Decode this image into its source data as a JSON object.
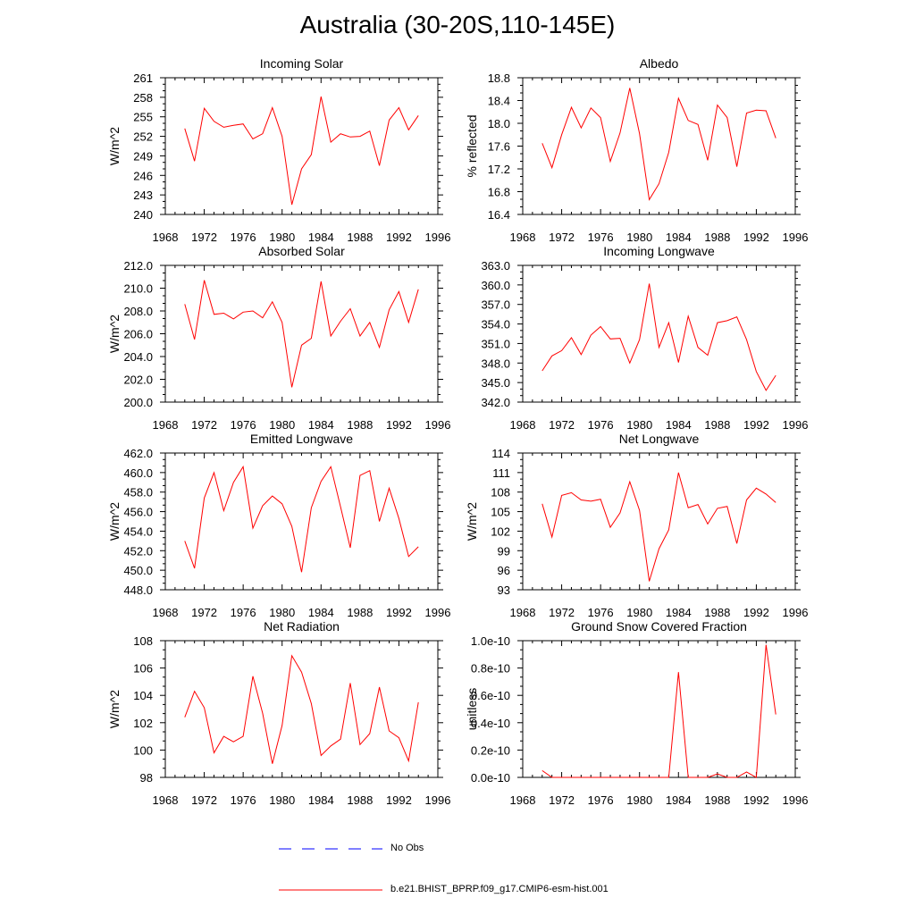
{
  "title": "Australia (30-20S,110-145E)",
  "colors": {
    "model": "#ff0000",
    "obs": "#0000ff",
    "axis": "#000000"
  },
  "legend": {
    "obs_label": "No Obs",
    "model_label": "b.e21.BHIST_BPRP.f09_g17.CMIP6-esm-hist.001"
  },
  "chart_data": [
    {
      "type": "line",
      "title": "Incoming Solar",
      "ylabel": "W/m^2",
      "xlim": [
        1968,
        1996
      ],
      "xticks": [
        "1968",
        "1972",
        "1976",
        "1980",
        "1984",
        "1988",
        "1992",
        "1996"
      ],
      "ylim": [
        240,
        261
      ],
      "yticks": [
        "240",
        "243",
        "246",
        "249",
        "252",
        "255",
        "258",
        "261"
      ],
      "x": [
        1970,
        1971,
        1972,
        1973,
        1974,
        1975,
        1976,
        1977,
        1978,
        1979,
        1980,
        1981,
        1982,
        1983,
        1984,
        1985,
        1986,
        1987,
        1988,
        1989,
        1990,
        1991,
        1992,
        1993,
        1994
      ],
      "series": [
        {
          "values": [
            253.2,
            248.2,
            256.3,
            254.3,
            253.4,
            253.7,
            253.9,
            251.6,
            252.4,
            256.4,
            252.0,
            241.5,
            247.0,
            249.2,
            258.1,
            251.1,
            252.4,
            251.9,
            252.0,
            252.8,
            247.5,
            254.5,
            256.4,
            253.0,
            255.2
          ]
        }
      ]
    },
    {
      "type": "line",
      "title": "Albedo",
      "ylabel": "% reflected",
      "xlim": [
        1968,
        1996
      ],
      "xticks": [
        "1968",
        "1972",
        "1976",
        "1980",
        "1984",
        "1988",
        "1992",
        "1996"
      ],
      "ylim": [
        16.4,
        18.8
      ],
      "yticks": [
        "16.4",
        "16.8",
        "17.2",
        "17.6",
        "18.0",
        "18.4",
        "18.8"
      ],
      "x": [
        1970,
        1971,
        1972,
        1973,
        1974,
        1975,
        1976,
        1977,
        1978,
        1979,
        1980,
        1981,
        1982,
        1983,
        1984,
        1985,
        1986,
        1987,
        1988,
        1989,
        1990,
        1991,
        1992,
        1993,
        1994
      ],
      "series": [
        {
          "values": [
            17.65,
            17.22,
            17.8,
            18.28,
            17.92,
            18.27,
            18.1,
            17.33,
            17.83,
            18.62,
            17.82,
            16.66,
            16.94,
            17.49,
            18.44,
            18.05,
            17.98,
            17.35,
            18.32,
            18.1,
            17.24,
            18.18,
            18.23,
            18.22,
            17.74
          ]
        }
      ]
    },
    {
      "type": "line",
      "title": "Absorbed Solar",
      "ylabel": "W/m^2",
      "xlim": [
        1968,
        1996
      ],
      "xticks": [
        "1968",
        "1972",
        "1976",
        "1980",
        "1984",
        "1988",
        "1992",
        "1996"
      ],
      "ylim": [
        200,
        212
      ],
      "yticks": [
        "200.0",
        "202.0",
        "204.0",
        "206.0",
        "208.0",
        "210.0",
        "212.0"
      ],
      "x": [
        1970,
        1971,
        1972,
        1973,
        1974,
        1975,
        1976,
        1977,
        1978,
        1979,
        1980,
        1981,
        1982,
        1983,
        1984,
        1985,
        1986,
        1987,
        1988,
        1989,
        1990,
        1991,
        1992,
        1993,
        1994
      ],
      "series": [
        {
          "values": [
            208.6,
            205.5,
            210.7,
            207.7,
            207.8,
            207.3,
            207.9,
            208.0,
            207.4,
            208.8,
            207.0,
            201.3,
            205.0,
            205.6,
            210.6,
            205.8,
            207.1,
            208.2,
            205.8,
            207.0,
            204.8,
            208.1,
            209.7,
            207.0,
            209.9
          ]
        }
      ]
    },
    {
      "type": "line",
      "title": "Incoming Longwave",
      "ylabel": "",
      "xlim": [
        1968,
        1996
      ],
      "xticks": [
        "1968",
        "1972",
        "1976",
        "1980",
        "1984",
        "1988",
        "1992",
        "1996"
      ],
      "ylim": [
        342,
        363
      ],
      "yticks": [
        "342.0",
        "345.0",
        "348.0",
        "351.0",
        "354.0",
        "357.0",
        "360.0",
        "363.0"
      ],
      "x": [
        1970,
        1971,
        1972,
        1973,
        1974,
        1975,
        1976,
        1977,
        1978,
        1979,
        1980,
        1981,
        1982,
        1983,
        1984,
        1985,
        1986,
        1987,
        1988,
        1989,
        1990,
        1991,
        1992,
        1993,
        1994
      ],
      "series": [
        {
          "values": [
            346.8,
            349.1,
            349.9,
            351.9,
            349.3,
            352.3,
            353.6,
            351.7,
            351.8,
            348.0,
            351.6,
            360.2,
            350.4,
            354.2,
            348.1,
            355.2,
            350.4,
            349.2,
            354.2,
            354.5,
            355.1,
            351.6,
            346.7,
            343.8,
            346.1
          ]
        }
      ]
    },
    {
      "type": "line",
      "title": "Emitted Longwave",
      "ylabel": "W/m^2",
      "xlim": [
        1968,
        1996
      ],
      "xticks": [
        "1968",
        "1972",
        "1976",
        "1980",
        "1984",
        "1988",
        "1992",
        "1996"
      ],
      "ylim": [
        448,
        462
      ],
      "yticks": [
        "448.0",
        "450.0",
        "452.0",
        "454.0",
        "456.0",
        "458.0",
        "460.0",
        "462.0"
      ],
      "x": [
        1970,
        1971,
        1972,
        1973,
        1974,
        1975,
        1976,
        1977,
        1978,
        1979,
        1980,
        1981,
        1982,
        1983,
        1984,
        1985,
        1986,
        1987,
        1988,
        1989,
        1990,
        1991,
        1992,
        1993,
        1994
      ],
      "series": [
        {
          "values": [
            453.0,
            450.2,
            457.4,
            460.0,
            456.1,
            459.0,
            460.6,
            454.3,
            456.6,
            457.6,
            456.8,
            454.5,
            449.8,
            456.4,
            459.1,
            460.6,
            456.5,
            452.3,
            459.7,
            460.2,
            455.0,
            458.4,
            455.3,
            451.4,
            452.4
          ]
        }
      ]
    },
    {
      "type": "line",
      "title": "Net Longwave",
      "ylabel": "W/m^2",
      "xlim": [
        1968,
        1996
      ],
      "xticks": [
        "1968",
        "1972",
        "1976",
        "1980",
        "1984",
        "1988",
        "1992",
        "1996"
      ],
      "ylim": [
        93,
        114
      ],
      "yticks": [
        "93",
        "96",
        "99",
        "102",
        "105",
        "108",
        "111",
        "114"
      ],
      "x": [
        1970,
        1971,
        1972,
        1973,
        1974,
        1975,
        1976,
        1977,
        1978,
        1979,
        1980,
        1981,
        1982,
        1983,
        1984,
        1985,
        1986,
        1987,
        1988,
        1989,
        1990,
        1991,
        1992,
        1993,
        1994
      ],
      "series": [
        {
          "values": [
            106.2,
            101.1,
            107.5,
            107.9,
            106.8,
            106.6,
            106.9,
            102.6,
            104.8,
            109.6,
            105.2,
            94.3,
            99.3,
            102.2,
            111.0,
            105.6,
            106.1,
            103.1,
            105.5,
            105.8,
            100.1,
            106.8,
            108.6,
            107.7,
            106.4
          ]
        }
      ]
    },
    {
      "type": "line",
      "title": "Net Radiation",
      "ylabel": "W/m^2",
      "xlim": [
        1968,
        1996
      ],
      "xticks": [
        "1968",
        "1972",
        "1976",
        "1980",
        "1984",
        "1988",
        "1992",
        "1996"
      ],
      "ylim": [
        98,
        108
      ],
      "yticks": [
        "98",
        "100",
        "102",
        "104",
        "106",
        "108"
      ],
      "x": [
        1970,
        1971,
        1972,
        1973,
        1974,
        1975,
        1976,
        1977,
        1978,
        1979,
        1980,
        1981,
        1982,
        1983,
        1984,
        1985,
        1986,
        1987,
        1988,
        1989,
        1990,
        1991,
        1992,
        1993,
        1994
      ],
      "series": [
        {
          "values": [
            102.4,
            104.3,
            103.1,
            99.8,
            101.0,
            100.6,
            101.0,
            105.4,
            102.7,
            99.0,
            101.8,
            106.9,
            105.7,
            103.4,
            99.6,
            100.3,
            100.8,
            104.9,
            100.4,
            101.2,
            104.6,
            101.4,
            100.9,
            99.2,
            103.5
          ]
        }
      ]
    },
    {
      "type": "line",
      "title": "Ground Snow Covered Fraction",
      "ylabel": "unitless",
      "xlim": [
        1968,
        1996
      ],
      "xticks": [
        "1968",
        "1972",
        "1976",
        "1980",
        "1984",
        "1988",
        "1992",
        "1996"
      ],
      "ylim": [
        0,
        1e-10
      ],
      "yticks": [
        "0.0e-10",
        "0.2e-10",
        "0.4e-10",
        "0.6e-10",
        "0.8e-10",
        "1.0e-10"
      ],
      "x": [
        1970,
        1971,
        1972,
        1973,
        1974,
        1975,
        1976,
        1977,
        1978,
        1979,
        1980,
        1981,
        1982,
        1983,
        1984,
        1985,
        1986,
        1987,
        1988,
        1989,
        1990,
        1991,
        1992,
        1993,
        1994
      ],
      "series": [
        {
          "values": [
            5e-12,
            0,
            0,
            0,
            0,
            0,
            0,
            0,
            0,
            0,
            0,
            0,
            0,
            0,
            7.7e-11,
            0,
            0,
            0,
            2.5e-12,
            0,
            0,
            4e-12,
            0,
            9.7e-11,
            4.6e-11
          ]
        }
      ]
    }
  ]
}
